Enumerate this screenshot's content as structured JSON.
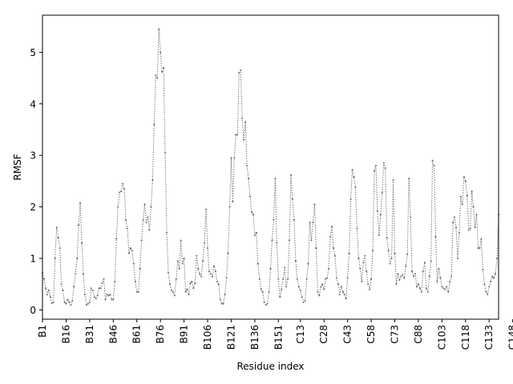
{
  "chart_data": {
    "type": "line",
    "title": "",
    "xlabel": "Residue index",
    "ylabel": "RMSF",
    "ylim": [
      -0.18,
      5.72
    ],
    "yticks": [
      0,
      1,
      2,
      3,
      4,
      5
    ],
    "xticks": [
      {
        "index": 0,
        "label": "B1"
      },
      {
        "index": 15,
        "label": "B16"
      },
      {
        "index": 30,
        "label": "B31"
      },
      {
        "index": 45,
        "label": "B46"
      },
      {
        "index": 60,
        "label": "B61"
      },
      {
        "index": 75,
        "label": "B76"
      },
      {
        "index": 90,
        "label": "B91"
      },
      {
        "index": 105,
        "label": "B106"
      },
      {
        "index": 120,
        "label": "B121"
      },
      {
        "index": 135,
        "label": "B136"
      },
      {
        "index": 150,
        "label": "B151"
      },
      {
        "index": 164,
        "label": "C13"
      },
      {
        "index": 179,
        "label": "C28"
      },
      {
        "index": 194,
        "label": "C43"
      },
      {
        "index": 209,
        "label": "C58"
      },
      {
        "index": 224,
        "label": "C73"
      },
      {
        "index": 239,
        "label": "C88"
      },
      {
        "index": 254,
        "label": "C103"
      },
      {
        "index": 269,
        "label": "C118"
      },
      {
        "index": 284,
        "label": "C133"
      },
      {
        "index": 299,
        "label": "C148"
      }
    ],
    "grid": false,
    "legend": "none",
    "line_color": "#7a7a7a",
    "series": [
      {
        "values": [
          0.72,
          0.6,
          0.42,
          0.3,
          0.38,
          0.25,
          0.13,
          0.15,
          1.0,
          1.6,
          1.4,
          1.2,
          0.5,
          0.38,
          0.15,
          0.12,
          0.2,
          0.15,
          0.1,
          0.18,
          0.45,
          0.7,
          1.0,
          1.65,
          2.08,
          1.3,
          0.7,
          0.3,
          0.1,
          0.12,
          0.15,
          0.42,
          0.38,
          0.25,
          0.22,
          0.28,
          0.42,
          0.42,
          0.52,
          0.6,
          0.2,
          0.3,
          0.28,
          0.3,
          0.2,
          0.2,
          0.55,
          1.38,
          2.0,
          2.28,
          2.3,
          2.45,
          2.35,
          1.75,
          1.58,
          1.1,
          1.2,
          1.15,
          0.9,
          0.55,
          0.35,
          0.35,
          0.8,
          1.35,
          1.75,
          2.05,
          1.7,
          1.8,
          1.55,
          2.0,
          2.52,
          3.6,
          4.55,
          4.5,
          5.45,
          5.0,
          4.62,
          4.7,
          3.05,
          1.5,
          0.72,
          0.5,
          0.38,
          0.35,
          0.28,
          0.6,
          0.95,
          0.8,
          1.35,
          0.9,
          1.0,
          0.35,
          0.4,
          0.3,
          0.52,
          0.55,
          0.42,
          0.52,
          1.05,
          0.8,
          0.7,
          0.65,
          0.95,
          1.3,
          1.95,
          1.2,
          0.75,
          0.7,
          0.65,
          0.85,
          0.75,
          0.55,
          0.5,
          0.2,
          0.12,
          0.12,
          0.3,
          0.62,
          1.1,
          2.0,
          2.95,
          2.1,
          2.95,
          3.4,
          3.4,
          4.6,
          4.65,
          3.72,
          3.3,
          3.65,
          2.8,
          2.55,
          2.2,
          1.9,
          1.85,
          1.45,
          1.5,
          0.9,
          0.6,
          0.4,
          0.35,
          0.15,
          0.1,
          0.12,
          0.35,
          0.8,
          1.35,
          1.75,
          2.55,
          1.3,
          0.6,
          0.25,
          0.4,
          0.6,
          0.82,
          0.45,
          0.6,
          1.35,
          2.62,
          2.15,
          1.75,
          0.95,
          0.6,
          0.45,
          0.38,
          0.25,
          0.15,
          0.18,
          0.6,
          0.9,
          1.7,
          1.35,
          1.7,
          2.05,
          1.2,
          0.35,
          0.28,
          0.45,
          0.5,
          0.4,
          0.6,
          0.62,
          0.8,
          1.42,
          1.62,
          1.2,
          1.05,
          0.62,
          0.5,
          0.3,
          0.45,
          0.35,
          0.3,
          0.22,
          0.62,
          1.1,
          2.15,
          2.72,
          2.58,
          2.38,
          1.58,
          1.0,
          0.8,
          0.55,
          0.92,
          1.05,
          0.75,
          0.5,
          0.4,
          0.6,
          1.15,
          2.7,
          2.8,
          1.92,
          1.45,
          1.85,
          2.28,
          2.85,
          2.75,
          1.4,
          1.15,
          0.9,
          1.0,
          2.52,
          1.1,
          0.5,
          0.7,
          0.58,
          0.65,
          0.68,
          0.62,
          0.85,
          1.08,
          2.55,
          1.8,
          0.75,
          0.65,
          0.7,
          0.45,
          0.5,
          0.42,
          0.35,
          0.75,
          0.92,
          0.42,
          0.35,
          0.65,
          0.95,
          2.9,
          2.8,
          1.42,
          0.55,
          0.8,
          0.62,
          0.45,
          0.42,
          0.4,
          0.45,
          0.35,
          0.55,
          0.65,
          1.7,
          1.8,
          1.6,
          1.0,
          1.5,
          2.2,
          2.05,
          2.58,
          2.5,
          2.22,
          1.55,
          1.58,
          2.3,
          2.0,
          1.6,
          1.85,
          1.2,
          1.2,
          1.38,
          0.78,
          0.5,
          0.35,
          0.3,
          0.45,
          0.55,
          0.65,
          0.62,
          0.7,
          1.0,
          1.85
        ]
      }
    ]
  }
}
